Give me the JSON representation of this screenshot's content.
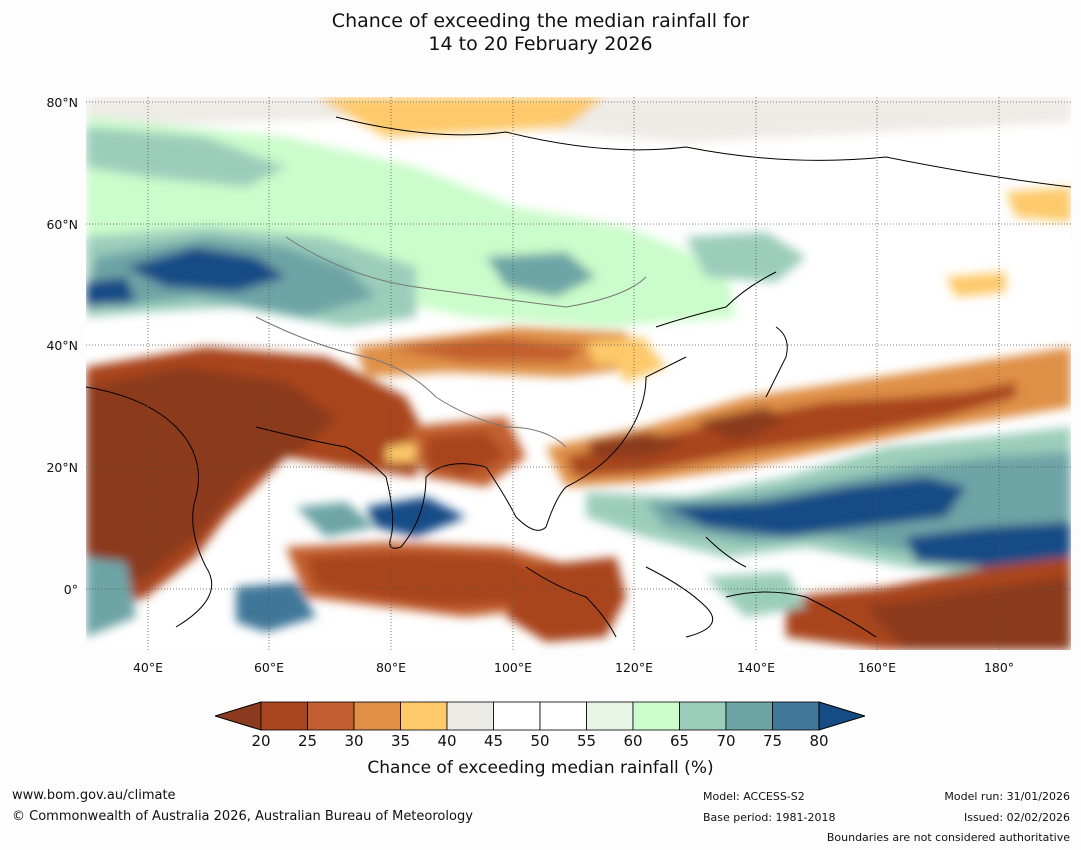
{
  "title_line1": "Chance of exceeding the median rainfall for",
  "title_line2": "14 to 20 February 2026",
  "latitude_labels": [
    "80°N",
    "60°N",
    "40°N",
    "20°N",
    "0°"
  ],
  "longitude_labels": [
    "40°E",
    "60°E",
    "80°E",
    "100°E",
    "120°E",
    "140°E",
    "160°E",
    "180°"
  ],
  "colorbar": {
    "label": "Chance of exceeding median rainfall (%)",
    "ticks": [
      "20",
      "25",
      "30",
      "35",
      "40",
      "45",
      "50",
      "55",
      "60",
      "65",
      "70",
      "75",
      "80"
    ],
    "below_color": "#8b3a1f",
    "above_color": "#164c86",
    "bin_colors": [
      "#a9451f",
      "#c25e2f",
      "#df9046",
      "#fdc96a",
      "#edebe6",
      "#ffffff",
      "#ffffff",
      "#e7f5e7",
      "#cbfccb",
      "#9bcdbb",
      "#6da4a6",
      "#417799"
    ]
  },
  "footer": {
    "website": "www.bom.gov.au/climate",
    "copyright": "© Commonwealth of Australia 2026, Australian Bureau of Meteorology",
    "model": "Model: ACCESS-S2",
    "base_period": "Base period: 1981-2018",
    "model_run": "Model run: 31/01/2026",
    "issued": "Issued: 02/02/2026",
    "disclaimer": "Boundaries are not considered authoritative"
  }
}
